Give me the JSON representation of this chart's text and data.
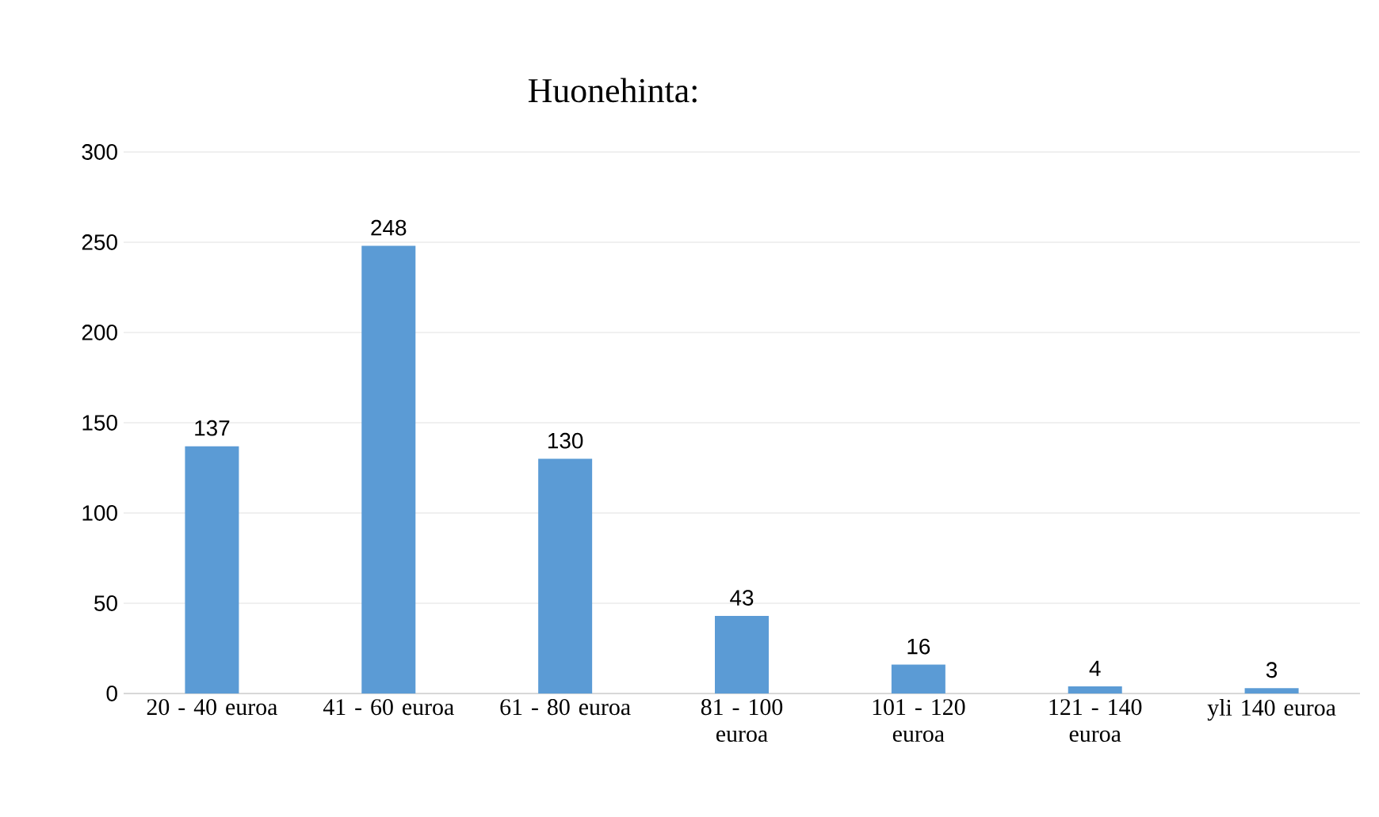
{
  "chart_data": {
    "type": "bar",
    "title": "Huonehinta:",
    "categories": [
      "20 - 40 euroa",
      "41 - 60 euroa",
      "61 - 80 euroa",
      "81 - 100 euroa",
      "101 - 120 euroa",
      "121 - 140 euroa",
      "yli 140 euroa"
    ],
    "values": [
      137,
      248,
      130,
      43,
      16,
      4,
      3
    ],
    "color": "#5b9bd5",
    "ylim": [
      0,
      300
    ],
    "yticks": [
      0,
      50,
      100,
      150,
      200,
      250,
      300
    ],
    "grid": "y",
    "data_labels": true
  }
}
